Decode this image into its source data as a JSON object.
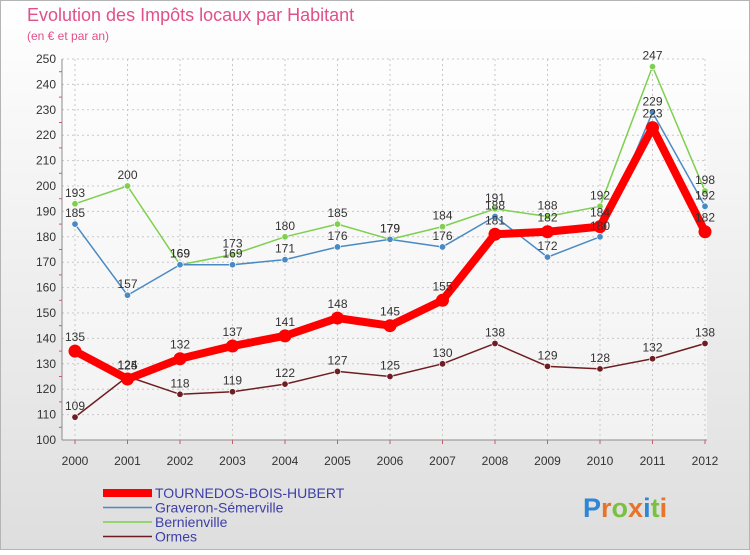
{
  "chart_data": {
    "type": "line",
    "title": "Evolution des Impôts locaux par Habitant",
    "subtitle": "(en € et par an)",
    "xlabel": "",
    "ylabel": "",
    "ylim": [
      100,
      250
    ],
    "yticks": [
      100,
      110,
      120,
      130,
      140,
      150,
      160,
      170,
      180,
      190,
      200,
      210,
      220,
      230,
      240,
      250
    ],
    "categories": [
      "2000",
      "2001",
      "2002",
      "2003",
      "2004",
      "2005",
      "2006",
      "2007",
      "2008",
      "2009",
      "2010",
      "2011",
      "2012"
    ],
    "grid": true,
    "legend_position": "bottom-left",
    "series": [
      {
        "name": "TOURNEDOS-BOIS-HUBERT",
        "color": "#ff0000",
        "values": [
          135,
          124,
          132,
          137,
          141,
          148,
          145,
          155,
          181,
          182,
          184,
          223,
          182
        ]
      },
      {
        "name": "Graveron-Sémerville",
        "color": "#4a8ac4",
        "values": [
          185,
          157,
          169,
          169,
          171,
          176,
          179,
          176,
          188,
          172,
          180,
          229,
          192
        ]
      },
      {
        "name": "Bernienville",
        "color": "#7ed04e",
        "values": [
          193,
          200,
          169,
          173,
          180,
          185,
          179,
          184,
          191,
          188,
          192,
          247,
          198
        ]
      },
      {
        "name": "Ormes",
        "color": "#6e1e22",
        "values": [
          109,
          125,
          118,
          119,
          122,
          127,
          125,
          130,
          138,
          129,
          128,
          132,
          138
        ]
      }
    ]
  },
  "logo": {
    "text": "Proxiti",
    "letters": [
      "P",
      "r",
      "o",
      "x",
      "i",
      "t",
      "i"
    ],
    "colors": [
      "#2e86d6",
      "#e8732a",
      "#7ac143",
      "#e8732a",
      "#2e86d6",
      "#7ac143",
      "#e8732a"
    ]
  }
}
